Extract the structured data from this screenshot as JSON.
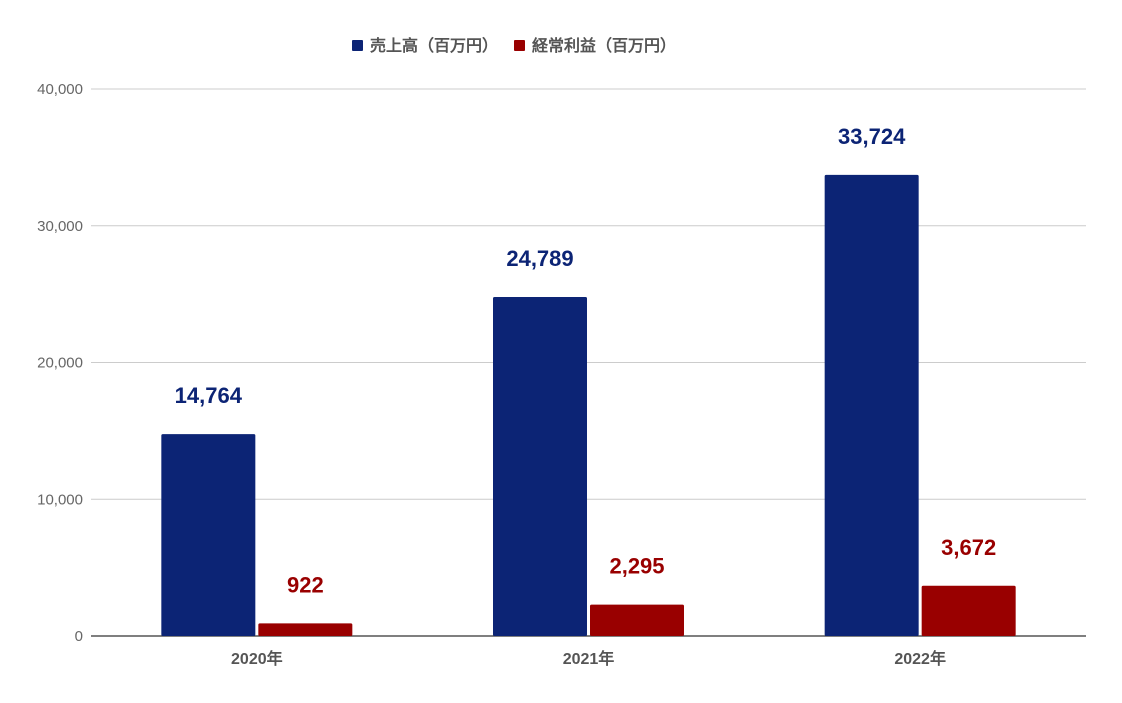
{
  "chart_data": {
    "type": "bar",
    "categories": [
      "2020年",
      "2021年",
      "2022年"
    ],
    "series": [
      {
        "name": "売上高（百万円）",
        "color": "#0c2475",
        "values": [
          14764,
          24789,
          33724
        ],
        "labels": [
          "14,764",
          "24,789",
          "33,724"
        ]
      },
      {
        "name": "経常利益（百万円）",
        "color": "#990000",
        "values": [
          922,
          2295,
          3672
        ],
        "labels": [
          "922",
          "2,295",
          "3,672"
        ]
      }
    ],
    "title": "",
    "xlabel": "",
    "ylabel": "",
    "ylim": [
      0,
      40000
    ],
    "yticks": [
      0,
      10000,
      20000,
      30000,
      40000
    ],
    "ytick_labels": [
      "0",
      "10,000",
      "20,000",
      "30,000",
      "40,000"
    ],
    "grid": true,
    "gridline_color": "#cccccc",
    "legend_position": "top"
  }
}
